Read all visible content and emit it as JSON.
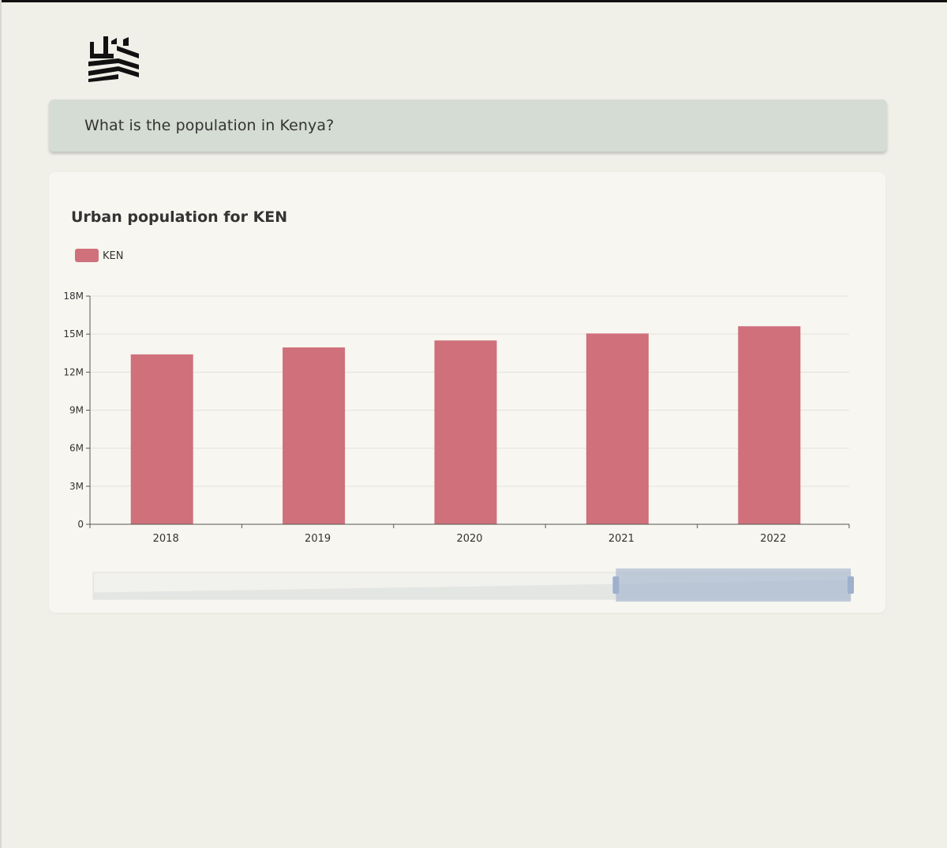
{
  "question": {
    "text": "What is the population in Kenya?"
  },
  "chart_data": {
    "type": "bar",
    "title": "Urban population for KEN",
    "legend": [
      "KEN"
    ],
    "legend_position": "top-left",
    "categories": [
      "2018",
      "2019",
      "2020",
      "2021",
      "2022"
    ],
    "series": [
      {
        "name": "KEN",
        "values": [
          13400000,
          13950000,
          14500000,
          15050000,
          15620000
        ]
      }
    ],
    "ylim": [
      0,
      18000000
    ],
    "yticks": [
      {
        "value": 0,
        "label": "0"
      },
      {
        "value": 3000000,
        "label": "3M"
      },
      {
        "value": 6000000,
        "label": "6M"
      },
      {
        "value": 9000000,
        "label": "9M"
      },
      {
        "value": 12000000,
        "label": "12M"
      },
      {
        "value": 15000000,
        "label": "15M"
      },
      {
        "value": 18000000,
        "label": "18M"
      }
    ],
    "grid": true,
    "bar_color": "#cf707b",
    "zoom_window": {
      "start_percent": 69,
      "end_percent": 100
    }
  }
}
